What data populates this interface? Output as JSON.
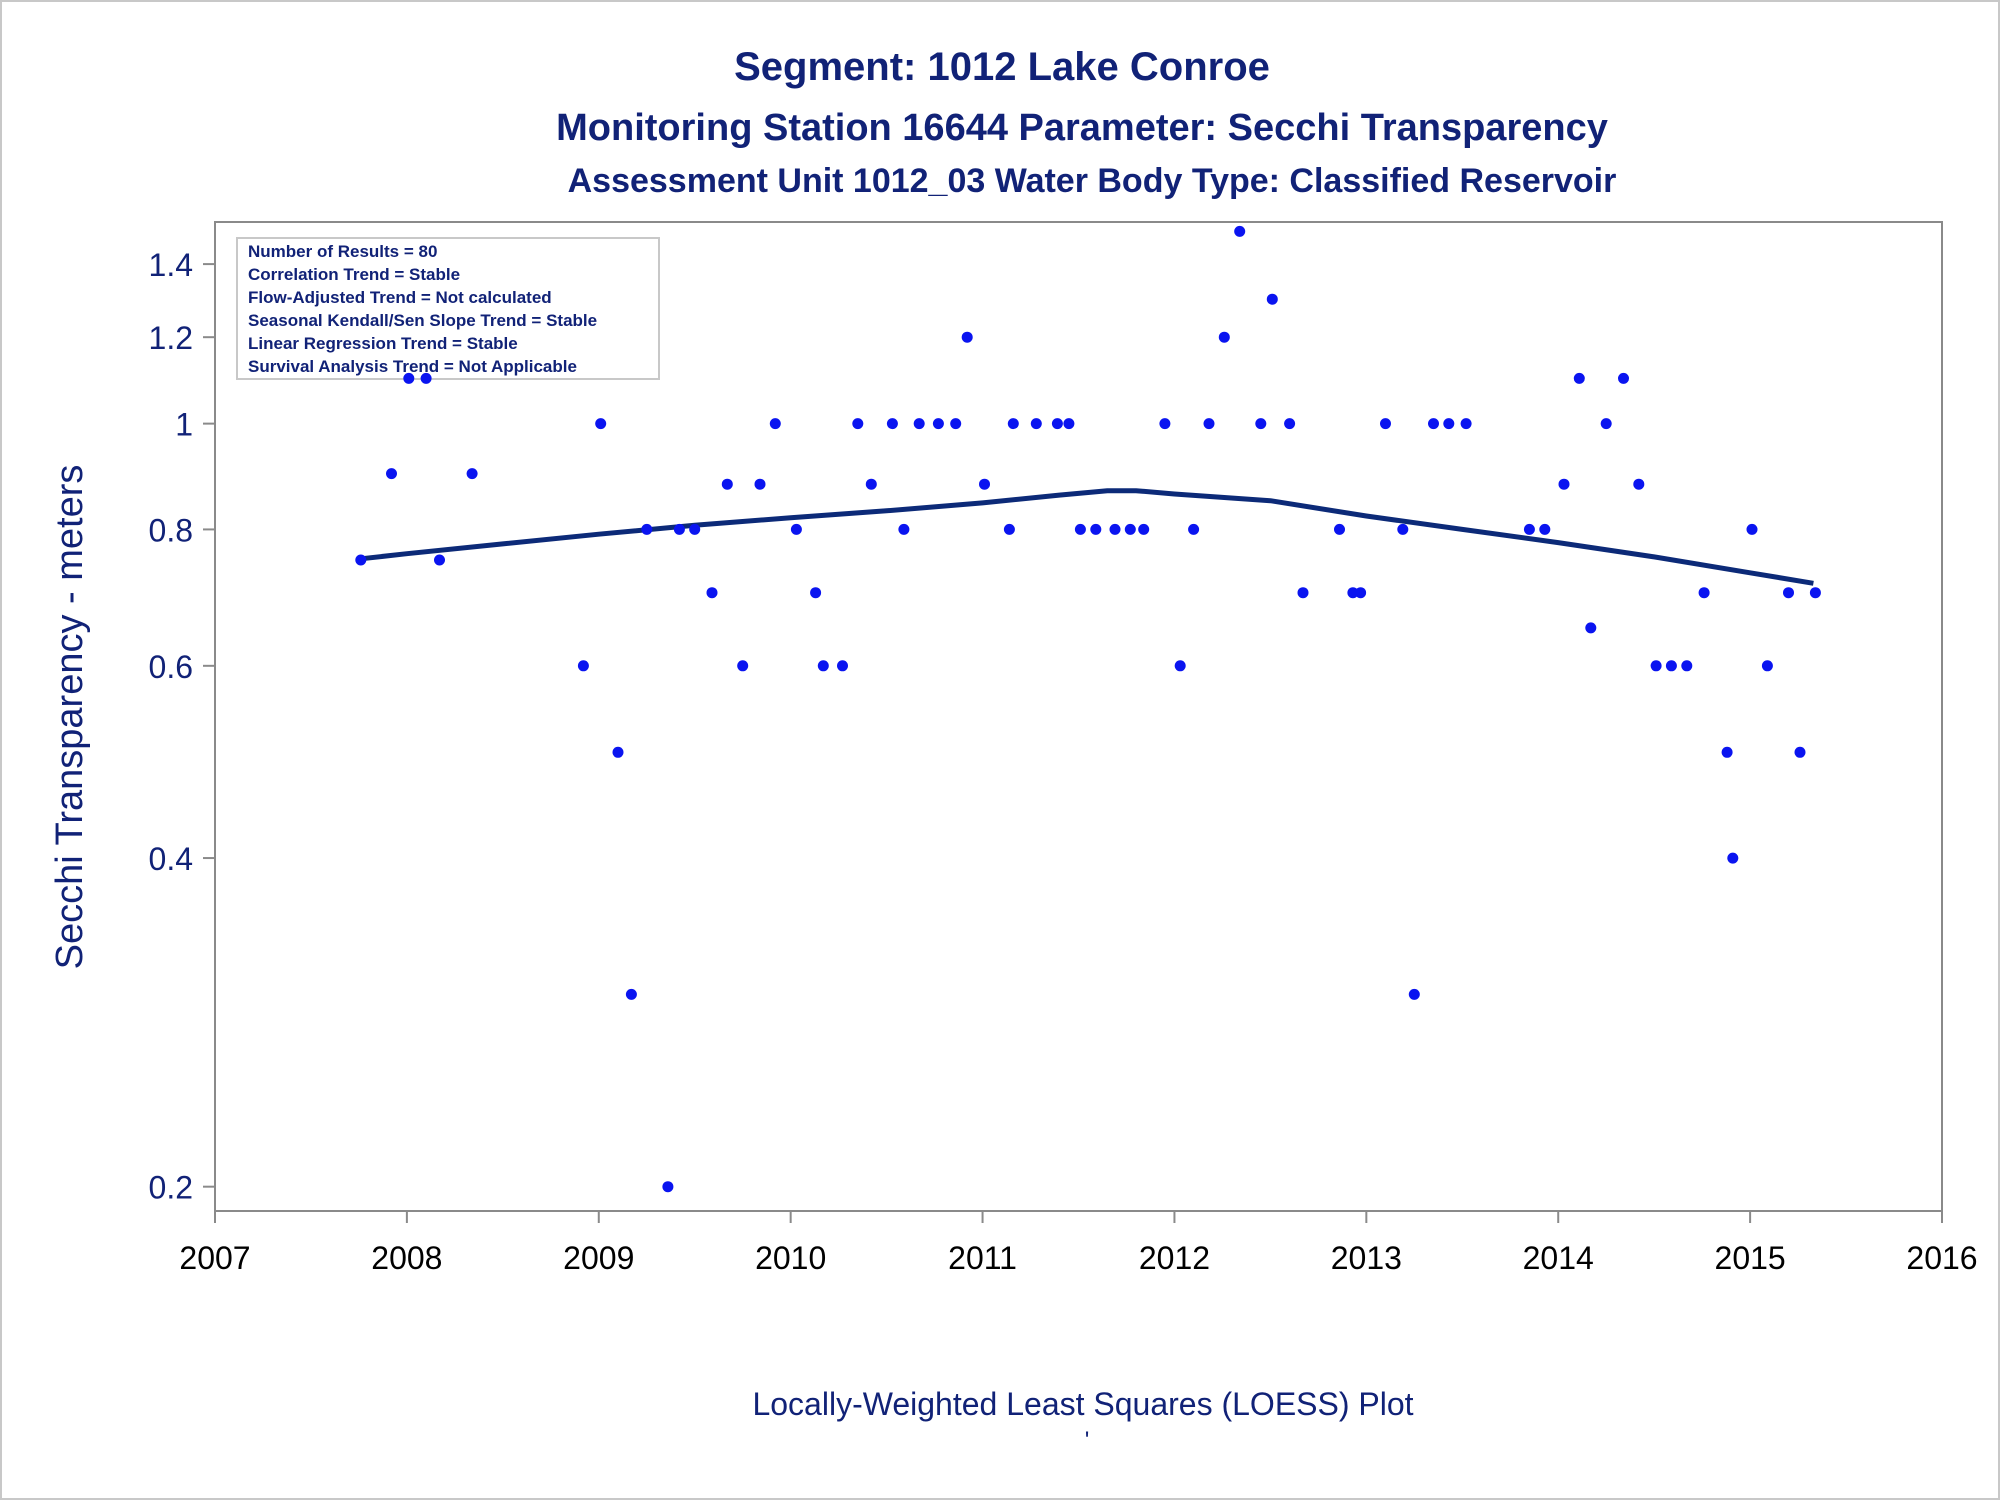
{
  "titles": {
    "line1": "Segment: 1012  Lake Conroe",
    "line2": "Monitoring Station 16644 Parameter: Secchi Transparency",
    "line3": "Assessment Unit 1012_03   Water Body Type: Classified Reservoir"
  },
  "inset": {
    "lines": [
      "Number of Results = 80",
      "Correlation Trend = Stable",
      "Flow-Adjusted Trend = Not calculated",
      "Seasonal Kendall/Sen Slope Trend = Stable",
      "Linear Regression Trend = Stable",
      "Survival Analysis Trend = Not Applicable"
    ]
  },
  "footnote": {
    "text": "Locally-Weighted Least Squares (LOESS) Plot",
    "mark": "'"
  },
  "colors": {
    "points": "#0a14f0",
    "loess": "#0c2a78",
    "text": "#112277",
    "axis": "#8a8a8a"
  },
  "chart_data": {
    "type": "scatter",
    "title": "Segment: 1012  Lake Conroe",
    "xlabel": "",
    "ylabel": "Secchi Transparency - meters",
    "y_scale": "log",
    "xlim": [
      2007,
      2016
    ],
    "ylim": [
      0.19,
      1.53
    ],
    "x_ticks": [
      2007,
      2008,
      2009,
      2010,
      2011,
      2012,
      2013,
      2014,
      2015,
      2016
    ],
    "y_ticks": [
      0.2,
      0.4,
      0.6,
      0.8,
      1,
      1.2,
      1.4
    ],
    "y_tick_labels": [
      "0.2",
      "0.4",
      "0.6",
      "0.8",
      "1",
      "1.2",
      "1.4"
    ],
    "legend": "none",
    "grid": false,
    "series": [
      {
        "type": "scatter",
        "points": [
          [
            2007.76,
            0.75
          ],
          [
            2007.92,
            0.9
          ],
          [
            2008.01,
            1.1
          ],
          [
            2008.1,
            1.1
          ],
          [
            2008.17,
            0.75
          ],
          [
            2008.34,
            0.9
          ],
          [
            2008.92,
            0.6
          ],
          [
            2009.01,
            1.0
          ],
          [
            2009.1,
            0.5
          ],
          [
            2009.17,
            0.3
          ],
          [
            2009.25,
            0.8
          ],
          [
            2009.36,
            0.2
          ],
          [
            2009.42,
            0.8
          ],
          [
            2009.5,
            0.8
          ],
          [
            2009.59,
            0.7
          ],
          [
            2009.67,
            0.88
          ],
          [
            2009.75,
            0.6
          ],
          [
            2009.84,
            0.88
          ],
          [
            2009.92,
            1.0
          ],
          [
            2010.03,
            0.8
          ],
          [
            2010.13,
            0.7
          ],
          [
            2010.17,
            0.6
          ],
          [
            2010.27,
            0.6
          ],
          [
            2010.35,
            1.0
          ],
          [
            2010.42,
            0.88
          ],
          [
            2010.53,
            1.0
          ],
          [
            2010.59,
            0.8
          ],
          [
            2010.67,
            1.0
          ],
          [
            2010.77,
            1.0
          ],
          [
            2010.86,
            1.0
          ],
          [
            2010.92,
            1.2
          ],
          [
            2011.01,
            0.88
          ],
          [
            2011.14,
            0.8
          ],
          [
            2011.16,
            1.0
          ],
          [
            2011.28,
            1.0
          ],
          [
            2011.39,
            1.0
          ],
          [
            2011.45,
            1.0
          ],
          [
            2011.51,
            0.8
          ],
          [
            2011.59,
            0.8
          ],
          [
            2011.69,
            0.8
          ],
          [
            2011.77,
            0.8
          ],
          [
            2011.84,
            0.8
          ],
          [
            2011.95,
            1.0
          ],
          [
            2012.03,
            0.6
          ],
          [
            2012.1,
            0.8
          ],
          [
            2012.18,
            1.0
          ],
          [
            2012.26,
            1.2
          ],
          [
            2012.34,
            1.5
          ],
          [
            2012.45,
            1.0
          ],
          [
            2012.51,
            1.3
          ],
          [
            2012.6,
            1.0
          ],
          [
            2012.67,
            0.7
          ],
          [
            2012.86,
            0.8
          ],
          [
            2012.93,
            0.7
          ],
          [
            2012.97,
            0.7
          ],
          [
            2013.1,
            1.0
          ],
          [
            2013.19,
            0.8
          ],
          [
            2013.25,
            0.3
          ],
          [
            2013.35,
            1.0
          ],
          [
            2013.43,
            1.0
          ],
          [
            2013.52,
            1.0
          ],
          [
            2013.85,
            0.8
          ],
          [
            2013.93,
            0.8
          ],
          [
            2014.03,
            0.88
          ],
          [
            2014.11,
            1.1
          ],
          [
            2014.17,
            0.65
          ],
          [
            2014.25,
            1.0
          ],
          [
            2014.34,
            1.1
          ],
          [
            2014.42,
            0.88
          ],
          [
            2014.51,
            0.6
          ],
          [
            2014.59,
            0.6
          ],
          [
            2014.67,
            0.6
          ],
          [
            2014.76,
            0.7
          ],
          [
            2014.88,
            0.5
          ],
          [
            2014.91,
            0.4
          ],
          [
            2015.01,
            0.8
          ],
          [
            2015.09,
            0.6
          ],
          [
            2015.2,
            0.7
          ],
          [
            2015.26,
            0.5
          ],
          [
            2015.34,
            0.7
          ]
        ]
      },
      {
        "type": "line",
        "points": [
          [
            2007.76,
            0.752
          ],
          [
            2008.0,
            0.76
          ],
          [
            2008.5,
            0.776
          ],
          [
            2009.0,
            0.792
          ],
          [
            2009.5,
            0.807
          ],
          [
            2010.0,
            0.82
          ],
          [
            2010.5,
            0.832
          ],
          [
            2011.0,
            0.846
          ],
          [
            2011.4,
            0.86
          ],
          [
            2011.65,
            0.868
          ],
          [
            2011.8,
            0.868
          ],
          [
            2012.0,
            0.862
          ],
          [
            2012.5,
            0.85
          ],
          [
            2013.0,
            0.823
          ],
          [
            2013.5,
            0.8
          ],
          [
            2014.0,
            0.778
          ],
          [
            2014.5,
            0.755
          ],
          [
            2015.0,
            0.73
          ],
          [
            2015.33,
            0.714
          ]
        ]
      }
    ]
  }
}
